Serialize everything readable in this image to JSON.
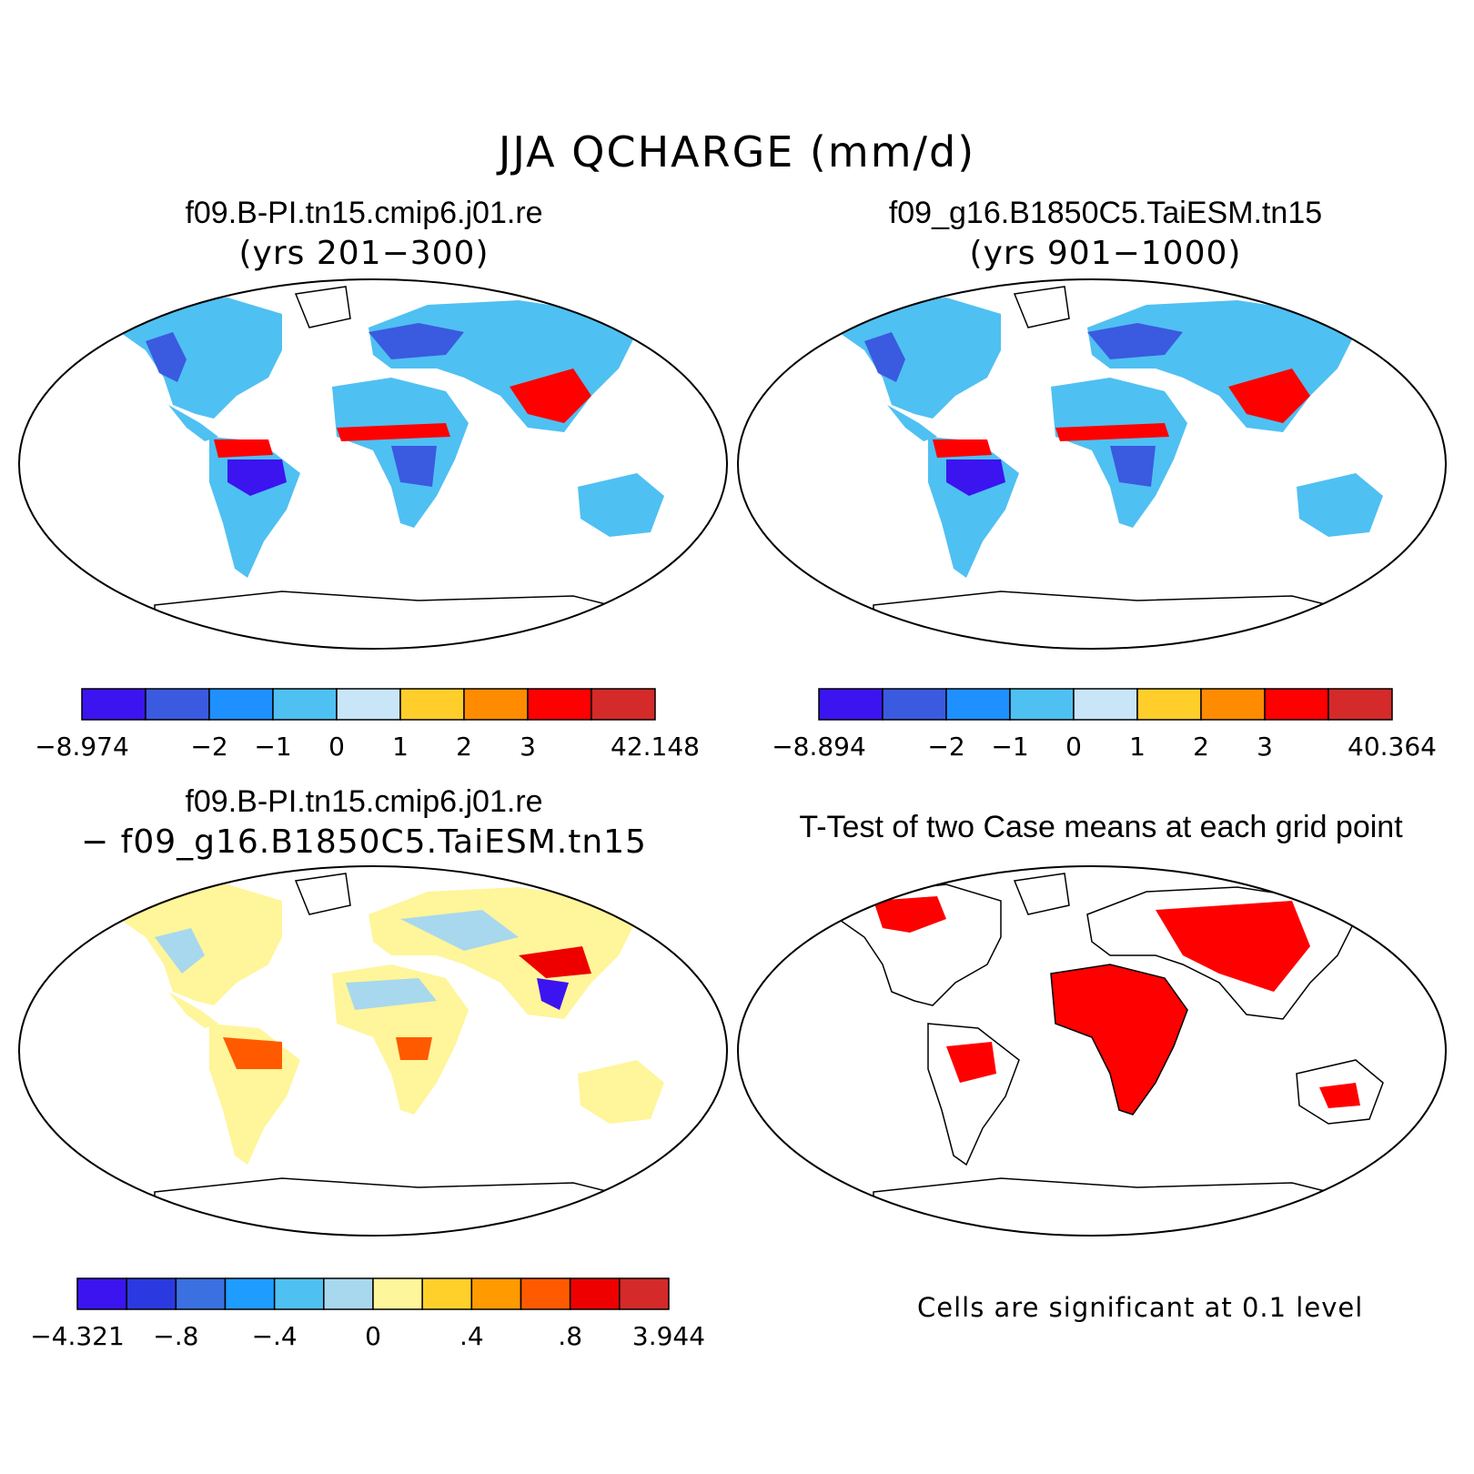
{
  "title": "JJA QCHARGE (mm/d)",
  "panels": [
    {
      "title": "f09.B-PI.tn15.cmip6.j01.re",
      "subtitle": "(yrs 201−300)"
    },
    {
      "title": "f09_g16.B1850C5.TaiESM.tn15",
      "subtitle": "(yrs 901−1000)"
    },
    {
      "title": "f09.B-PI.tn15.cmip6.j01.re",
      "subtitle": "− f09_g16.B1850C5.TaiESM.tn15"
    },
    {
      "title": "T-Test of two Case means at each grid point",
      "subtitle": ""
    }
  ],
  "colorbars": [
    {
      "colors": [
        "#3b14f0",
        "#3a5ae0",
        "#1e90ff",
        "#4fc0f2",
        "#c8e6f8",
        "#ffce2a",
        "#ff8c00",
        "#ff0000",
        "#d42a2a"
      ],
      "labels": [
        "−8.974",
        "−2",
        "−1",
        "0",
        "1",
        "2",
        "3",
        "42.148"
      ]
    },
    {
      "colors": [
        "#3b14f0",
        "#3a5ae0",
        "#1e90ff",
        "#4fc0f2",
        "#c8e6f8",
        "#ffce2a",
        "#ff8c00",
        "#ff0000",
        "#d42a2a"
      ],
      "labels": [
        "−8.894",
        "−2",
        "−1",
        "0",
        "1",
        "2",
        "3",
        "40.364"
      ]
    },
    {
      "colors": [
        "#3b14f0",
        "#2a3ae0",
        "#3a70e0",
        "#1e9cff",
        "#4fc0f2",
        "#a8d8ee",
        "#fff59a",
        "#ffd02a",
        "#ff9a00",
        "#ff5a00",
        "#ee0000",
        "#d42a2a"
      ],
      "labels": [
        "−4.321",
        "−.8",
        "−.4",
        "0",
        ".4",
        ".8",
        "3.944"
      ]
    }
  ],
  "note": "Cells are significant at 0.1 level",
  "legend_colors": {
    "land_fill_a": "#4fc0f2",
    "land_fill_diff": "#fff59a",
    "significant": "#ff0000"
  }
}
